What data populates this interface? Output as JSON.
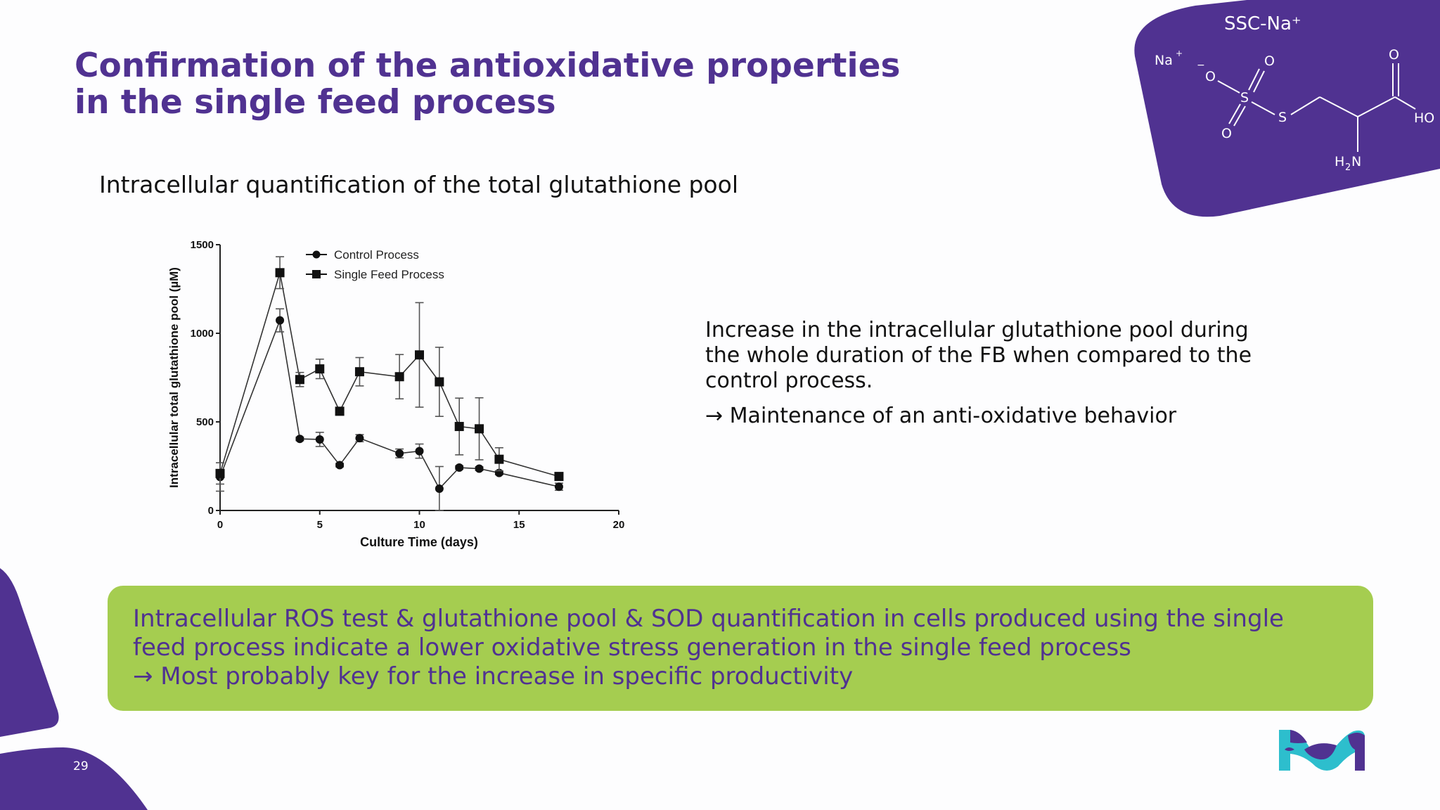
{
  "slide": {
    "title_lines": [
      "Confirmation of the antioxidative properties",
      "in the single feed process"
    ],
    "subtitle": "Intracellular quantification of the total glutathione pool",
    "page_number": "29"
  },
  "description": {
    "paragraph": "Increase in the intracellular glutathione pool during the whole duration of the FB when compared to the control process.",
    "conclusion": "→ Maintenance of an anti-oxidative behavior"
  },
  "callout": {
    "lines": [
      "Intracellular ROS test & glutathione pool & SOD quantification in cells produced using the single",
      "feed process indicate a lower oxidative stress generation in the single feed process",
      "→ Most probably key for the increase in specific productivity"
    ]
  },
  "molecule": {
    "name": "SSC-Na⁺",
    "counter_ion": "Na",
    "atoms": {
      "o_minus": "O",
      "s1": "S",
      "s2": "S",
      "o_top": "O",
      "o_bottom": "O",
      "o_acid": "O",
      "ho": "HO",
      "h2n_h": "H",
      "h2n_2": "2",
      "h2n_n": "N"
    }
  },
  "colors": {
    "brand_purple": "#503291",
    "callout_green": "#a5cd50",
    "logo_cyan": "#2dbecd"
  },
  "chart_data": {
    "type": "line",
    "title": "",
    "xlabel": "Culture Time (days)",
    "ylabel": "Intracellular total glutathione pool (µM)",
    "xlim": [
      0,
      20
    ],
    "ylim": [
      0,
      1500
    ],
    "xticks": [
      0,
      5,
      10,
      15,
      20
    ],
    "yticks": [
      0,
      500,
      1000,
      1500
    ],
    "grid": false,
    "legend_position": "upper-center-left",
    "series": [
      {
        "name": "Control Process",
        "marker": "circle",
        "x": [
          0,
          3,
          4,
          5,
          6,
          7,
          9,
          10,
          11,
          12,
          13,
          14,
          17
        ],
        "y": [
          189,
          1073,
          404,
          401,
          256,
          408,
          322,
          335,
          123,
          242,
          236,
          212,
          134
        ],
        "error": [
          80,
          65,
          10,
          40,
          10,
          20,
          25,
          40,
          125,
          10,
          10,
          10,
          20
        ]
      },
      {
        "name": "Single Feed Process",
        "marker": "square",
        "x": [
          0,
          3,
          4,
          5,
          6,
          7,
          9,
          10,
          11,
          12,
          13,
          14,
          17
        ],
        "y": [
          209,
          1342,
          739,
          799,
          560,
          783,
          755,
          878,
          726,
          474,
          461,
          289,
          192
        ],
        "error": [
          60,
          90,
          40,
          55,
          10,
          80,
          125,
          295,
          195,
          160,
          175,
          65,
          10
        ]
      }
    ]
  }
}
